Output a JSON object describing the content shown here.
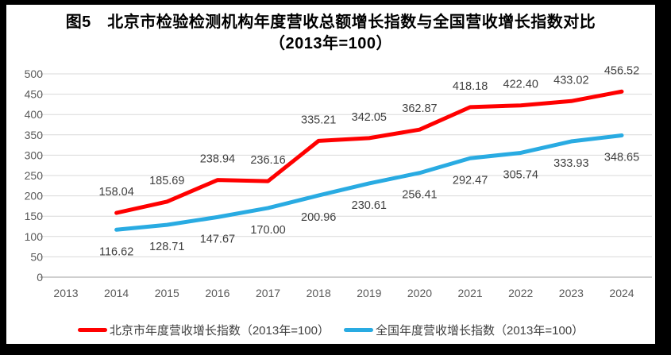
{
  "title": {
    "line1": "图5　北京市检验检测机构年度营收总额增长指数与全国营收增长指数对比",
    "line2": "（2013年=100）"
  },
  "chart_data": {
    "type": "line",
    "categories": [
      "2013",
      "2014",
      "2015",
      "2016",
      "2017",
      "2018",
      "2019",
      "2020",
      "2021",
      "2022",
      "2023",
      "2024"
    ],
    "series": [
      {
        "name": "北京市年度营收增长指数（2013年=100）",
        "color": "#FF0000",
        "start_category": "2014",
        "label_position": "above",
        "values": [
          158.04,
          185.69,
          238.94,
          236.16,
          335.21,
          342.05,
          362.87,
          418.18,
          422.4,
          433.02,
          456.52
        ]
      },
      {
        "name": "全国年度营收增长指数（2013年=100）",
        "color": "#29ABE2",
        "start_category": "2014",
        "label_position": "below",
        "values": [
          116.62,
          128.71,
          147.67,
          170.0,
          200.96,
          230.61,
          256.41,
          292.47,
          305.74,
          333.93,
          348.65
        ]
      }
    ],
    "ylim": [
      0,
      500
    ],
    "ytick_step": 50,
    "grid": true,
    "legend_position": "bottom",
    "data_labels_decimals": 2,
    "colors": {
      "gridline": "#D9D9D9",
      "axis_line": "#BFBFBF",
      "tick_label": "#595959",
      "data_label": "#3F3F3F"
    }
  }
}
